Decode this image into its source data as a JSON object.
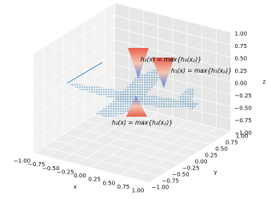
{
  "chart_data": {
    "type": "scatter3d",
    "xlabel": "x",
    "ylabel": "y",
    "zlabel": "z",
    "xlim": [
      -1,
      1
    ],
    "ylim": [
      -1,
      1
    ],
    "zlim": [
      -1,
      1
    ],
    "xticks": [
      {
        "value": -1,
        "label": "−1.00"
      },
      {
        "value": -0.75,
        "label": "−0.75"
      },
      {
        "value": -0.5,
        "label": "−0.50"
      },
      {
        "value": -0.25,
        "label": "−0.25"
      },
      {
        "value": 0,
        "label": "0.00"
      },
      0.25,
      {
        "value": 0.5,
        "label": "0.50"
      },
      0.75,
      {
        "value": 1,
        "label": "1.00"
      }
    ],
    "yticks": [
      {
        "value": -1,
        "label": "−1.00"
      },
      {
        "value": -0.75,
        "label": "−0.75"
      },
      {
        "value": -0.5,
        "label": "−0.50"
      },
      {
        "value": -0.25,
        "label": "−0.25"
      },
      {
        "value": 0,
        "label": "0.00"
      },
      0.25,
      {
        "value": 0.5,
        "label": "0.50"
      },
      0.75,
      {
        "value": 1,
        "label": "1.00"
      }
    ],
    "zticks": [
      {
        "value": -1,
        "label": "−1.00"
      },
      {
        "value": -0.75,
        "label": "−0.75"
      },
      {
        "value": -0.5,
        "label": "−0.50"
      },
      {
        "value": -0.25,
        "label": "−0.25"
      },
      {
        "value": 0,
        "label": "0.00"
      },
      0.25,
      {
        "value": 0.5,
        "label": "0.50"
      },
      0.75,
      {
        "value": 1,
        "label": "1.00"
      }
    ],
    "grid": true,
    "annotations": [
      "h₃(x) = max{h₃(xₚ)}",
      "h₁(x) = max{h₁(xₚ)}",
      "h₂(x) = max{h₂(xₚ)}"
    ]
  }
}
